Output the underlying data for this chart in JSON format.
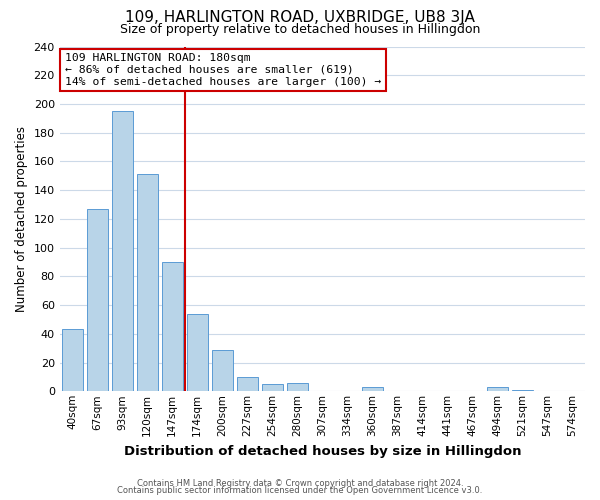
{
  "title": "109, HARLINGTON ROAD, UXBRIDGE, UB8 3JA",
  "subtitle": "Size of property relative to detached houses in Hillingdon",
  "xlabel": "Distribution of detached houses by size in Hillingdon",
  "ylabel": "Number of detached properties",
  "bar_labels": [
    "40sqm",
    "67sqm",
    "93sqm",
    "120sqm",
    "147sqm",
    "174sqm",
    "200sqm",
    "227sqm",
    "254sqm",
    "280sqm",
    "307sqm",
    "334sqm",
    "360sqm",
    "387sqm",
    "414sqm",
    "441sqm",
    "467sqm",
    "494sqm",
    "521sqm",
    "547sqm",
    "574sqm"
  ],
  "bar_values": [
    43,
    127,
    195,
    151,
    90,
    54,
    29,
    10,
    5,
    6,
    0,
    0,
    3,
    0,
    0,
    0,
    0,
    3,
    1,
    0,
    0
  ],
  "bar_color": "#b8d4e8",
  "bar_edge_color": "#5b9bd5",
  "vline_color": "#cc0000",
  "vline_index": 5,
  "annotation_title": "109 HARLINGTON ROAD: 180sqm",
  "annotation_line1": "← 86% of detached houses are smaller (619)",
  "annotation_line2": "14% of semi-detached houses are larger (100) →",
  "annotation_box_color": "#ffffff",
  "annotation_box_edge": "#cc0000",
  "ylim": [
    0,
    240
  ],
  "yticks": [
    0,
    20,
    40,
    60,
    80,
    100,
    120,
    140,
    160,
    180,
    200,
    220,
    240
  ],
  "footer1": "Contains HM Land Registry data © Crown copyright and database right 2024.",
  "footer2": "Contains public sector information licensed under the Open Government Licence v3.0.",
  "bg_color": "#ffffff",
  "grid_color": "#ccd9e8",
  "title_fontsize": 11,
  "subtitle_fontsize": 9
}
